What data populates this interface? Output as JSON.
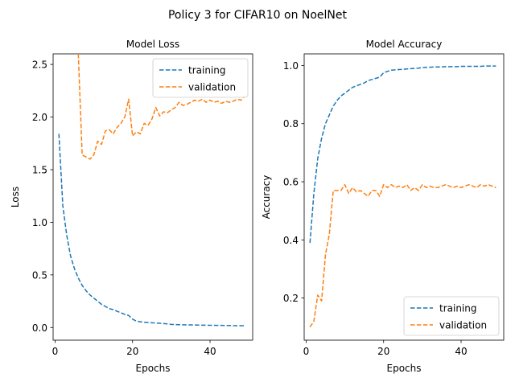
{
  "figure": {
    "title": "Policy 3 for CIFAR10 on NoelNet"
  },
  "chart_data": [
    {
      "type": "line",
      "title": "Model Loss",
      "xlabel": "Epochs",
      "ylabel": "Loss",
      "xlim": [
        -0.5,
        51
      ],
      "ylim": [
        -0.12,
        2.6
      ],
      "xticks": [
        0,
        20,
        40
      ],
      "xtick_labels": [
        "0",
        "20",
        "40"
      ],
      "yticks": [
        0.0,
        0.5,
        1.0,
        1.5,
        2.0,
        2.5
      ],
      "ytick_labels": [
        "0.0",
        "0.5",
        "1.0",
        "1.5",
        "2.0",
        "2.5"
      ],
      "legend": "top-right",
      "series": [
        {
          "name": "training",
          "color": "#1f77b4",
          "x": [
            1,
            2,
            3,
            4,
            5,
            6,
            7,
            8,
            9,
            10,
            11,
            12,
            13,
            14,
            15,
            16,
            17,
            18,
            19,
            20,
            21,
            22,
            23,
            24,
            25,
            26,
            27,
            28,
            29,
            30,
            31,
            32,
            33,
            34,
            35,
            36,
            37,
            38,
            39,
            40,
            41,
            42,
            43,
            44,
            45,
            46,
            47,
            48,
            49
          ],
          "y": [
            1.84,
            1.16,
            0.88,
            0.68,
            0.56,
            0.47,
            0.4,
            0.35,
            0.31,
            0.28,
            0.25,
            0.22,
            0.2,
            0.18,
            0.17,
            0.155,
            0.14,
            0.125,
            0.115,
            0.08,
            0.06,
            0.055,
            0.05,
            0.048,
            0.045,
            0.043,
            0.04,
            0.038,
            0.035,
            0.03,
            0.028,
            0.027,
            0.026,
            0.025,
            0.025,
            0.024,
            0.023,
            0.022,
            0.022,
            0.021,
            0.021,
            0.02,
            0.02,
            0.019,
            0.019,
            0.018,
            0.018,
            0.018,
            0.018
          ]
        },
        {
          "name": "validation",
          "color": "#ff7f0e",
          "x": [
            6,
            7,
            8,
            9,
            10,
            11,
            12,
            13,
            14,
            15,
            16,
            17,
            18,
            19,
            20,
            21,
            22,
            23,
            24,
            25,
            26,
            27,
            28,
            29,
            30,
            31,
            32,
            33,
            34,
            35,
            36,
            37,
            38,
            39,
            40,
            41,
            42,
            43,
            44,
            45,
            46,
            47,
            48,
            49
          ],
          "y": [
            2.6,
            1.64,
            1.62,
            1.6,
            1.64,
            1.77,
            1.74,
            1.87,
            1.88,
            1.84,
            1.9,
            1.94,
            2.0,
            2.17,
            1.82,
            1.86,
            1.84,
            1.94,
            1.92,
            1.98,
            2.09,
            2.01,
            2.05,
            2.04,
            2.07,
            2.09,
            2.14,
            2.11,
            2.12,
            2.14,
            2.16,
            2.15,
            2.17,
            2.14,
            2.16,
            2.14,
            2.15,
            2.13,
            2.15,
            2.14,
            2.15,
            2.17,
            2.16,
            2.2
          ]
        }
      ]
    },
    {
      "type": "line",
      "title": "Model Accuracy",
      "xlabel": "Epochs",
      "ylabel": "Accuracy",
      "xlim": [
        -0.5,
        51
      ],
      "ylim": [
        0.055,
        1.04
      ],
      "xticks": [
        0,
        20,
        40
      ],
      "xtick_labels": [
        "0",
        "20",
        "40"
      ],
      "yticks": [
        0.2,
        0.4,
        0.6,
        0.8,
        1.0
      ],
      "ytick_labels": [
        "0.2",
        "0.4",
        "0.6",
        "0.8",
        "1.0"
      ],
      "legend": "bottom-right",
      "series": [
        {
          "name": "training",
          "color": "#1f77b4",
          "x": [
            1,
            2,
            3,
            4,
            5,
            6,
            7,
            8,
            9,
            10,
            11,
            12,
            13,
            14,
            15,
            16,
            17,
            18,
            19,
            20,
            21,
            22,
            23,
            24,
            25,
            26,
            27,
            28,
            29,
            30,
            31,
            32,
            33,
            34,
            35,
            36,
            37,
            38,
            39,
            40,
            41,
            42,
            43,
            44,
            45,
            46,
            47,
            48,
            49
          ],
          "y": [
            0.39,
            0.56,
            0.68,
            0.75,
            0.8,
            0.83,
            0.86,
            0.88,
            0.895,
            0.905,
            0.915,
            0.925,
            0.93,
            0.935,
            0.94,
            0.948,
            0.952,
            0.956,
            0.96,
            0.975,
            0.98,
            0.984,
            0.985,
            0.986,
            0.987,
            0.988,
            0.989,
            0.99,
            0.991,
            0.993,
            0.994,
            0.994,
            0.995,
            0.995,
            0.995,
            0.996,
            0.996,
            0.996,
            0.996,
            0.997,
            0.997,
            0.997,
            0.997,
            0.997,
            0.997,
            0.998,
            0.998,
            0.998,
            0.998
          ]
        },
        {
          "name": "validation",
          "color": "#ff7f0e",
          "x": [
            1,
            2,
            3,
            4,
            5,
            6,
            7,
            8,
            9,
            10,
            11,
            12,
            13,
            14,
            15,
            16,
            17,
            18,
            19,
            20,
            21,
            22,
            23,
            24,
            25,
            26,
            27,
            28,
            29,
            30,
            31,
            32,
            33,
            34,
            35,
            36,
            37,
            38,
            39,
            40,
            41,
            42,
            43,
            44,
            45,
            46,
            47,
            48,
            49
          ],
          "y": [
            0.1,
            0.12,
            0.21,
            0.19,
            0.35,
            0.42,
            0.57,
            0.57,
            0.57,
            0.59,
            0.56,
            0.58,
            0.565,
            0.57,
            0.56,
            0.55,
            0.57,
            0.57,
            0.55,
            0.59,
            0.58,
            0.59,
            0.58,
            0.585,
            0.58,
            0.59,
            0.57,
            0.58,
            0.57,
            0.59,
            0.58,
            0.585,
            0.58,
            0.58,
            0.585,
            0.59,
            0.585,
            0.58,
            0.585,
            0.58,
            0.585,
            0.59,
            0.585,
            0.58,
            0.59,
            0.585,
            0.59,
            0.585,
            0.58
          ]
        }
      ]
    }
  ]
}
